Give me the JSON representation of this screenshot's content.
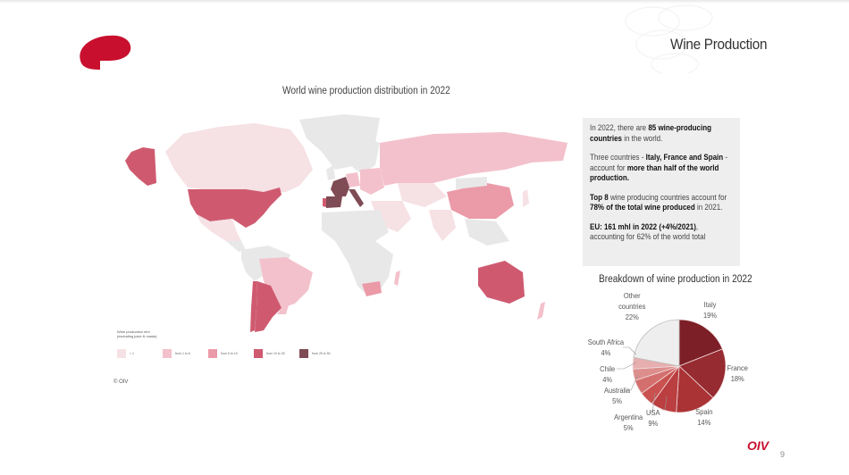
{
  "slide": {
    "title": "Wine Production",
    "page_number": "9",
    "footer_logo_text": "OIV",
    "brand_color": "#c8102e"
  },
  "map": {
    "title": "World wine production distribution in 2022",
    "copyright": "© OIV",
    "legend": {
      "title_line1": "Wine production mhl",
      "title_line2": "(excluding juice & musts)",
      "items": [
        {
          "label": "< 1",
          "color": "#f6e1e5"
        },
        {
          "label": "from 1 to 6",
          "color": "#f3c1cb"
        },
        {
          "label": "from 6 to 10",
          "color": "#eb9aa8"
        },
        {
          "label": "from 10 to 25",
          "color": "#cf5a70"
        },
        {
          "label": "from 25 to 50",
          "color": "#7f4b55"
        }
      ]
    },
    "no_data_color": "#e8e8e8"
  },
  "info": {
    "p1_a": "In 2022, there are ",
    "p1_b": "85 wine-producing countries",
    "p1_c": " in the world.",
    "p2_a": "Three countries - ",
    "p2_b": "Italy, France and Spain",
    "p2_c": " - account for ",
    "p2_d": "more than half of the world production.",
    "p3_a": "Top 8",
    "p3_b": " wine producing countries account for ",
    "p3_c": "78% of the total wine produced",
    "p3_d": " in 2021.",
    "p4_a": "EU: 161 mhl in 2022 (+4%/2021)",
    "p4_b": ",",
    "p4_c": "accounting for 62% of the world total"
  },
  "chart_data": {
    "type": "pie",
    "title": "Breakdown of wine production in 2022",
    "categories": [
      "Italy",
      "France",
      "Spain",
      "USA",
      "Argentina",
      "Australia",
      "Chile",
      "South Africa",
      "Other countries"
    ],
    "values": [
      19,
      18,
      14,
      9,
      5,
      5,
      4,
      4,
      22
    ],
    "unit": "%",
    "colors": [
      "#7c1f26",
      "#962b31",
      "#aa3336",
      "#bb3e40",
      "#c9514f",
      "#d3706e",
      "#dc8e8d",
      "#e6aeae",
      "#efeeee"
    ],
    "labels": [
      {
        "name": "Italy",
        "pct": "19%"
      },
      {
        "name": "France",
        "pct": "18%"
      },
      {
        "name": "Spain",
        "pct": "14%"
      },
      {
        "name": "USA",
        "pct": "9%"
      },
      {
        "name": "Argentina",
        "pct": "5%"
      },
      {
        "name": "Australia",
        "pct": "5%"
      },
      {
        "name": "Chile",
        "pct": "4%"
      },
      {
        "name": "South Africa",
        "pct": "4%"
      },
      {
        "name_line1": "Other",
        "name_line2": "countries",
        "pct": "22%"
      }
    ]
  }
}
